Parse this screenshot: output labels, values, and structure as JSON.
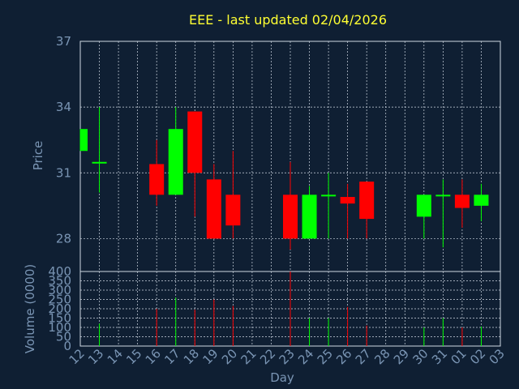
{
  "chart_data": {
    "type": "candlestick",
    "title": "EEE - last updated 02/04/2026",
    "xlabel": "Day",
    "price_panel": {
      "ylabel": "Price",
      "yticks": [
        28,
        31,
        34,
        37
      ],
      "ylim": [
        26.5,
        37
      ],
      "grid": true
    },
    "volume_panel": {
      "ylabel": "Volume (0000)",
      "yticks": [
        0,
        50,
        100,
        150,
        200,
        250,
        300,
        350,
        400
      ],
      "ylim": [
        0,
        400
      ],
      "grid": true
    },
    "x_tick_labels": [
      "12",
      "13",
      "14",
      "15",
      "16",
      "17",
      "18",
      "19",
      "20",
      "21",
      "22",
      "23",
      "24",
      "25",
      "26",
      "27",
      "28",
      "29",
      "30",
      "31",
      "01",
      "02",
      "03"
    ],
    "candles": [
      {
        "day": "12",
        "open": 32.0,
        "close": 33.0,
        "high": 33.0,
        "low": 32.0,
        "volume": 0
      },
      {
        "day": "13",
        "open": 31.5,
        "close": 31.5,
        "high": 34.0,
        "low": 30.1,
        "volume": 120
      },
      {
        "day": "16",
        "open": 31.4,
        "close": 30.0,
        "high": 32.5,
        "low": 29.5,
        "volume": 200
      },
      {
        "day": "17",
        "open": 30.0,
        "close": 33.0,
        "high": 34.0,
        "low": 30.0,
        "volume": 260
      },
      {
        "day": "18",
        "open": 33.8,
        "close": 31.0,
        "high": 33.8,
        "low": 29.0,
        "volume": 195
      },
      {
        "day": "19",
        "open": 30.7,
        "close": 28.0,
        "high": 31.4,
        "low": 28.0,
        "volume": 250
      },
      {
        "day": "20",
        "open": 30.0,
        "close": 28.6,
        "high": 32.0,
        "low": 28.0,
        "volume": 215
      },
      {
        "day": "23",
        "open": 30.0,
        "close": 28.0,
        "high": 31.5,
        "low": 27.5,
        "volume": 400
      },
      {
        "day": "24",
        "open": 28.0,
        "close": 30.0,
        "high": 30.4,
        "low": 28.0,
        "volume": 150
      },
      {
        "day": "25",
        "open": 30.0,
        "close": 30.0,
        "high": 31.0,
        "low": 28.0,
        "volume": 150
      },
      {
        "day": "26",
        "open": 29.9,
        "close": 29.6,
        "high": 30.5,
        "low": 28.0,
        "volume": 210
      },
      {
        "day": "27",
        "open": 30.6,
        "close": 28.9,
        "high": 30.6,
        "low": 28.0,
        "volume": 110
      },
      {
        "day": "30",
        "open": 29.0,
        "close": 30.0,
        "high": 30.0,
        "low": 28.0,
        "volume": 100
      },
      {
        "day": "31",
        "open": 30.0,
        "close": 30.0,
        "high": 30.7,
        "low": 27.6,
        "volume": 150
      },
      {
        "day": "01",
        "open": 30.0,
        "close": 29.4,
        "high": 30.7,
        "low": 28.5,
        "volume": 100
      },
      {
        "day": "02",
        "open": 29.5,
        "close": 30.0,
        "high": 30.5,
        "low": 28.8,
        "volume": 105
      }
    ],
    "colors": {
      "background": "#0f1f33",
      "up": "#00ff00",
      "down": "#ff0000",
      "title": "#ffff33",
      "axis_text": "#7a95b4",
      "grid": "#cfd8e3"
    }
  }
}
